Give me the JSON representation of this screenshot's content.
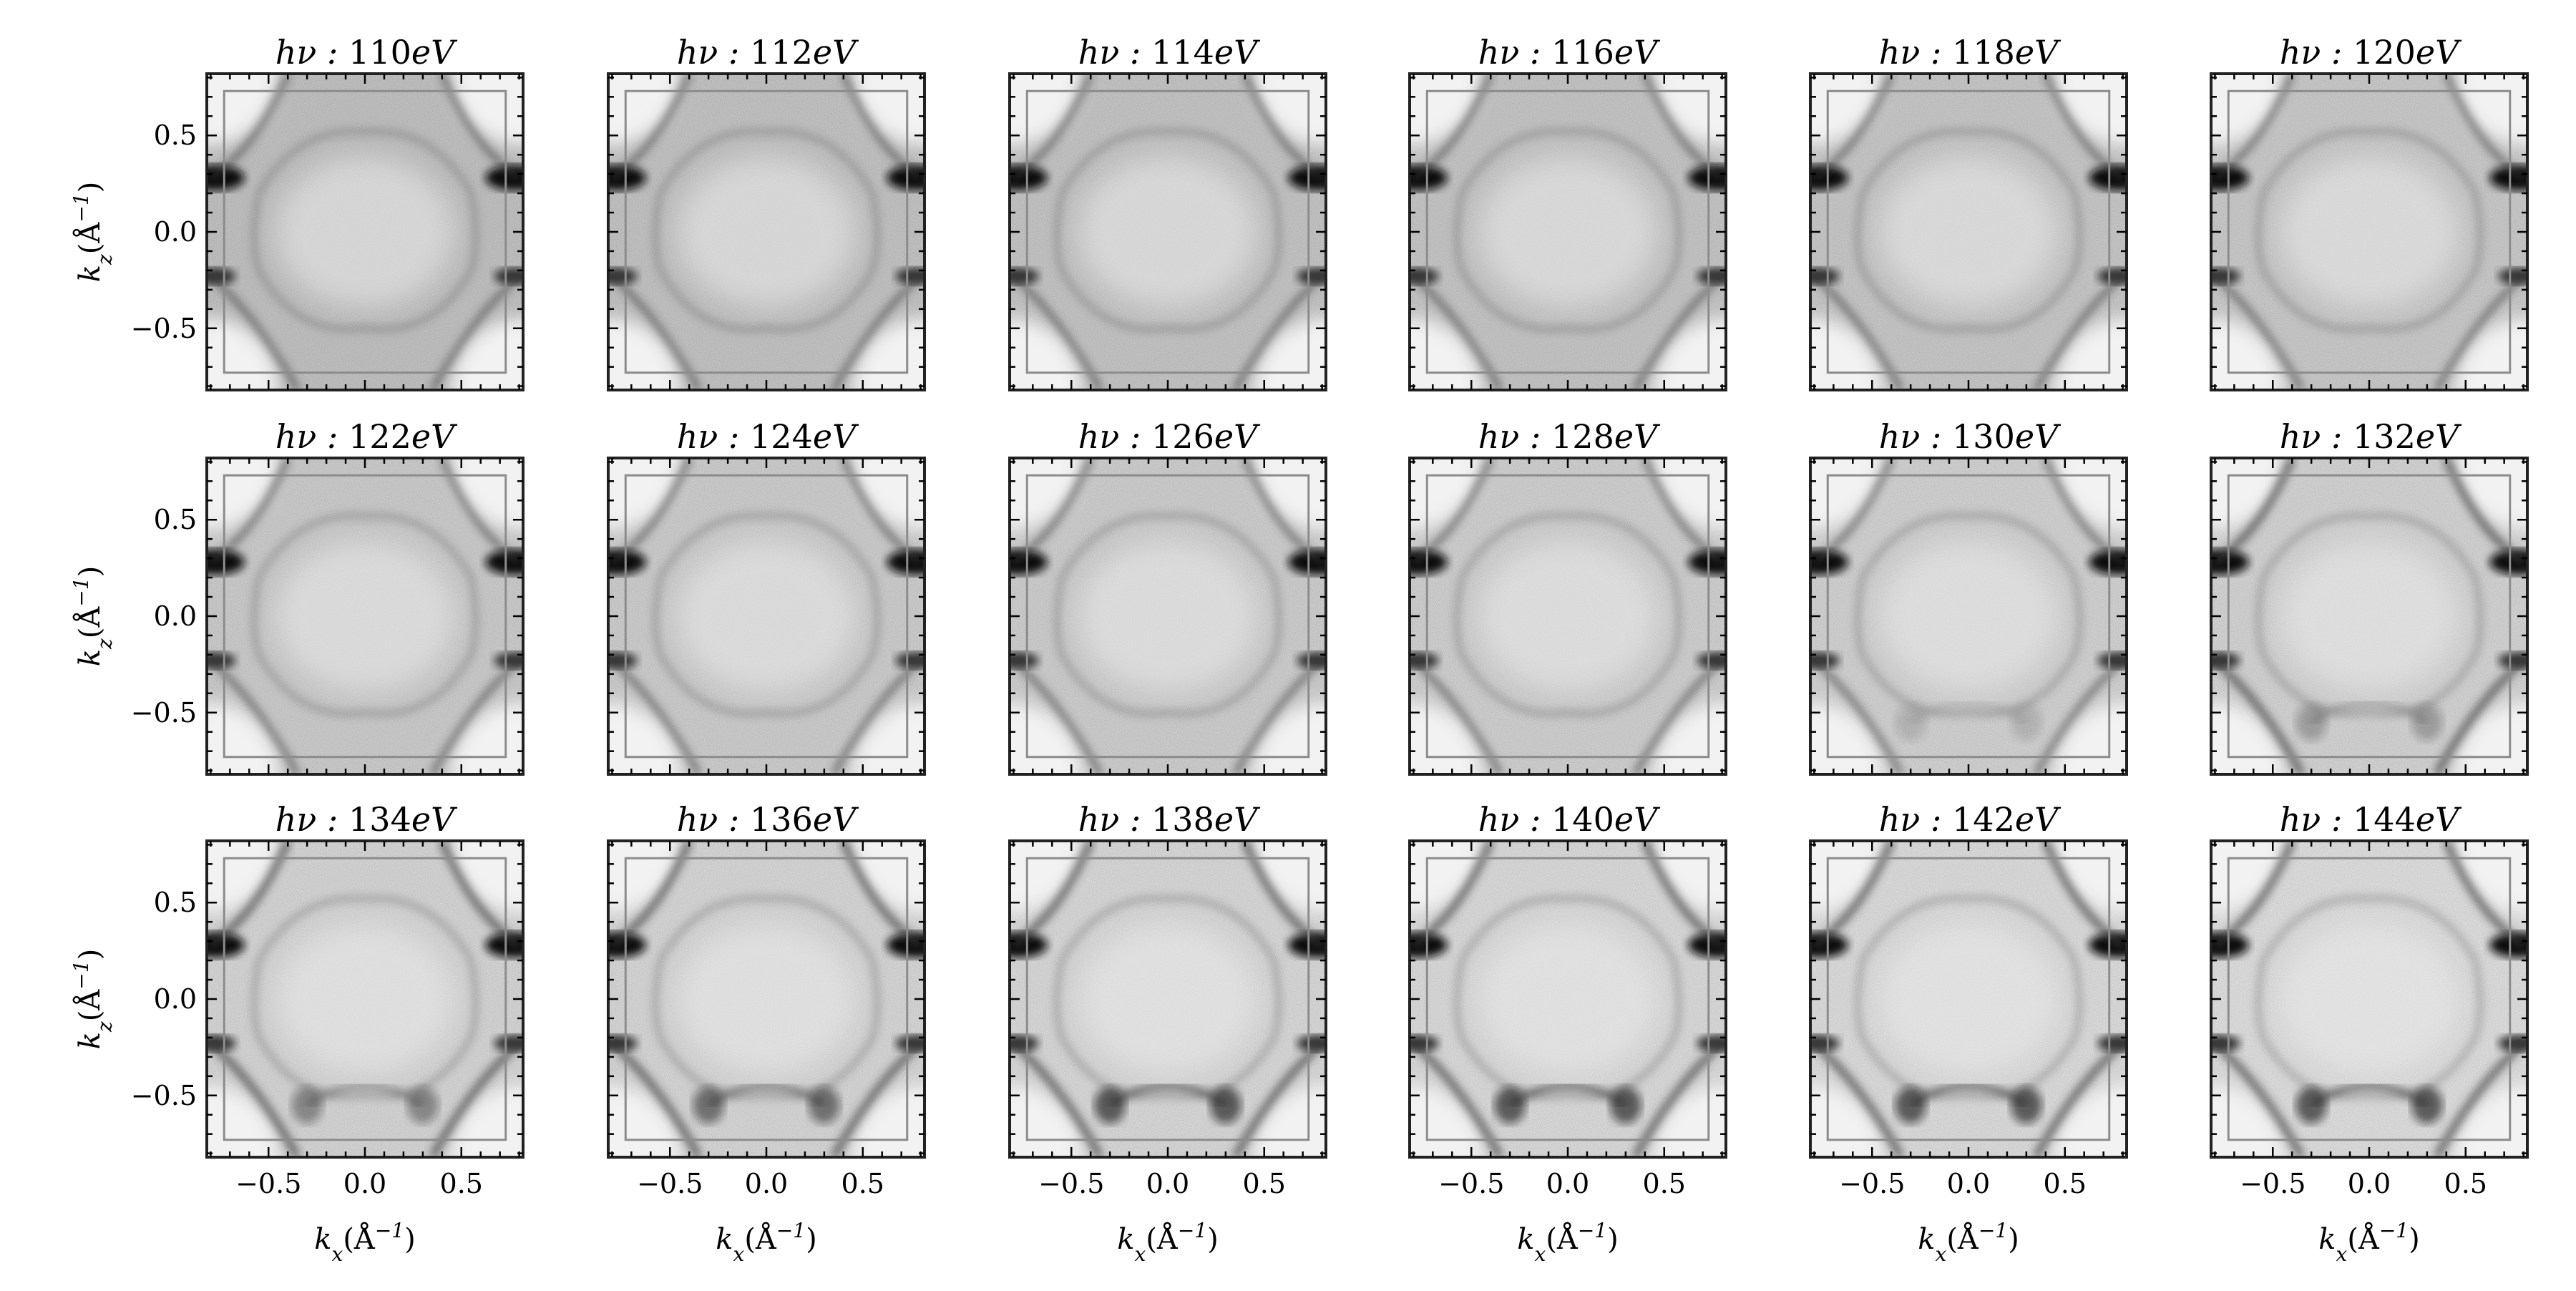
{
  "figure": {
    "rows": 3,
    "cols": 6,
    "colors": {
      "ink": "#000000",
      "frame": "#222222",
      "box": "#8c8c8c"
    }
  },
  "chart_data": {
    "type": "heatmap",
    "colormap": "gray_r",
    "xlabel": "k_x(Å^-1)",
    "ylabel": "k_z(Å^-1)",
    "xlim": [
      -0.82,
      0.82
    ],
    "ylim": [
      -0.82,
      0.82
    ],
    "xticks": [
      -0.5,
      0.0,
      0.5
    ],
    "yticks": [
      0.5,
      0.0,
      -0.5
    ],
    "xtick_labels": [
      "−0.5",
      "0.0",
      "0.5"
    ],
    "ytick_labels": [
      "0.5",
      "0.0",
      "−0.5"
    ],
    "reference_box": {
      "x": [
        -0.73,
        0.73
      ],
      "y": [
        -0.73,
        0.73
      ]
    },
    "panels": [
      {
        "title_prefix": "hν : ",
        "photon_energy": 110,
        "title_unit": "eV",
        "title": "hν : 110eV"
      },
      {
        "title_prefix": "hν : ",
        "photon_energy": 112,
        "title_unit": "eV",
        "title": "hν : 112eV"
      },
      {
        "title_prefix": "hν : ",
        "photon_energy": 114,
        "title_unit": "eV",
        "title": "hν : 114eV"
      },
      {
        "title_prefix": "hν : ",
        "photon_energy": 116,
        "title_unit": "eV",
        "title": "hν : 116eV"
      },
      {
        "title_prefix": "hν : ",
        "photon_energy": 118,
        "title_unit": "eV",
        "title": "hν : 118eV"
      },
      {
        "title_prefix": "hν : ",
        "photon_energy": 120,
        "title_unit": "eV",
        "title": "hν : 120eV"
      },
      {
        "title_prefix": "hν : ",
        "photon_energy": 122,
        "title_unit": "eV",
        "title": "hν : 122eV"
      },
      {
        "title_prefix": "hν : ",
        "photon_energy": 124,
        "title_unit": "eV",
        "title": "hν : 124eV"
      },
      {
        "title_prefix": "hν : ",
        "photon_energy": 126,
        "title_unit": "eV",
        "title": "hν : 126eV"
      },
      {
        "title_prefix": "hν : ",
        "photon_energy": 128,
        "title_unit": "eV",
        "title": "hν : 128eV"
      },
      {
        "title_prefix": "hν : ",
        "photon_energy": 130,
        "title_unit": "eV",
        "title": "hν : 130eV"
      },
      {
        "title_prefix": "hν : ",
        "photon_energy": 132,
        "title_unit": "eV",
        "title": "hν : 132eV"
      },
      {
        "title_prefix": "hν : ",
        "photon_energy": 134,
        "title_unit": "eV",
        "title": "hν : 134eV"
      },
      {
        "title_prefix": "hν : ",
        "photon_energy": 136,
        "title_unit": "eV",
        "title": "hν : 136eV"
      },
      {
        "title_prefix": "hν : ",
        "photon_energy": 138,
        "title_unit": "eV",
        "title": "hν : 138eV"
      },
      {
        "title_prefix": "hν : ",
        "photon_energy": 140,
        "title_unit": "eV",
        "title": "hν : 140eV"
      },
      {
        "title_prefix": "hν : ",
        "photon_energy": 142,
        "title_unit": "eV",
        "title": "hν : 142eV"
      },
      {
        "title_prefix": "hν : ",
        "photon_energy": 144,
        "title_unit": "eV",
        "title": "hν : 144eV"
      }
    ]
  }
}
